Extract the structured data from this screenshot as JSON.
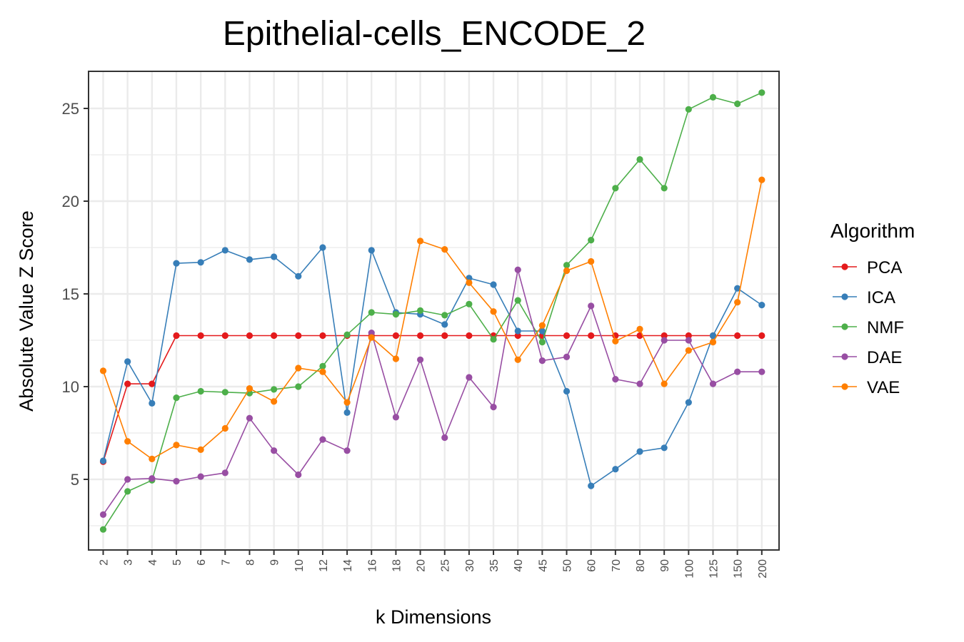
{
  "chart_data": {
    "type": "line",
    "title": "Epithelial-cells_ENCODE_2",
    "xlabel": "k Dimensions",
    "ylabel": "Absolute Value Z Score",
    "categories": [
      "2",
      "3",
      "4",
      "5",
      "6",
      "7",
      "8",
      "9",
      "10",
      "12",
      "14",
      "16",
      "18",
      "20",
      "25",
      "30",
      "35",
      "40",
      "45",
      "50",
      "60",
      "70",
      "80",
      "90",
      "100",
      "125",
      "150",
      "200"
    ],
    "yticks": [
      5,
      10,
      15,
      20,
      25
    ],
    "ylim": [
      1.2,
      27.0
    ],
    "grid": true,
    "legend": {
      "title": "Algorithm",
      "position": "right"
    },
    "series": [
      {
        "name": "PCA",
        "color": "#E41A1C",
        "values": [
          5.95,
          10.15,
          10.15,
          12.75,
          12.75,
          12.75,
          12.75,
          12.75,
          12.75,
          12.75,
          12.75,
          12.75,
          12.75,
          12.75,
          12.75,
          12.75,
          12.75,
          12.75,
          12.75,
          12.75,
          12.75,
          12.75,
          12.75,
          12.75,
          12.75,
          12.75,
          12.75,
          12.75
        ]
      },
      {
        "name": "ICA",
        "color": "#377EB8",
        "values": [
          6.0,
          11.35,
          9.1,
          16.65,
          16.7,
          17.35,
          16.85,
          17.0,
          15.95,
          17.5,
          8.6,
          17.35,
          14.0,
          13.9,
          13.35,
          15.85,
          15.5,
          13.0,
          13.0,
          9.75,
          4.65,
          5.55,
          6.5,
          6.7,
          9.15,
          12.75,
          15.3,
          14.4
        ]
      },
      {
        "name": "NMF",
        "color": "#4DAF4A",
        "values": [
          2.3,
          4.35,
          4.95,
          9.4,
          9.75,
          9.7,
          9.65,
          9.85,
          10.0,
          11.1,
          12.8,
          14.0,
          13.9,
          14.1,
          13.85,
          14.45,
          12.55,
          14.65,
          12.4,
          16.55,
          17.9,
          20.7,
          22.25,
          20.7,
          24.95,
          25.6,
          25.25,
          25.85
        ]
      },
      {
        "name": "DAE",
        "color": "#984EA3",
        "values": [
          3.1,
          5.0,
          5.05,
          4.9,
          5.15,
          5.35,
          8.3,
          6.55,
          5.25,
          7.15,
          6.55,
          12.9,
          8.35,
          11.45,
          7.25,
          10.5,
          8.9,
          16.3,
          11.4,
          11.6,
          14.35,
          10.4,
          10.15,
          12.5,
          12.5,
          10.15,
          10.8,
          10.8
        ]
      },
      {
        "name": "VAE",
        "color": "#FF7F00",
        "values": [
          10.85,
          7.05,
          6.1,
          6.85,
          6.6,
          7.75,
          9.9,
          9.2,
          11.0,
          10.8,
          9.15,
          12.65,
          11.5,
          17.85,
          17.4,
          15.6,
          14.05,
          11.45,
          13.3,
          16.25,
          16.75,
          12.45,
          13.1,
          10.15,
          11.95,
          12.4,
          14.55,
          21.15
        ]
      }
    ]
  }
}
